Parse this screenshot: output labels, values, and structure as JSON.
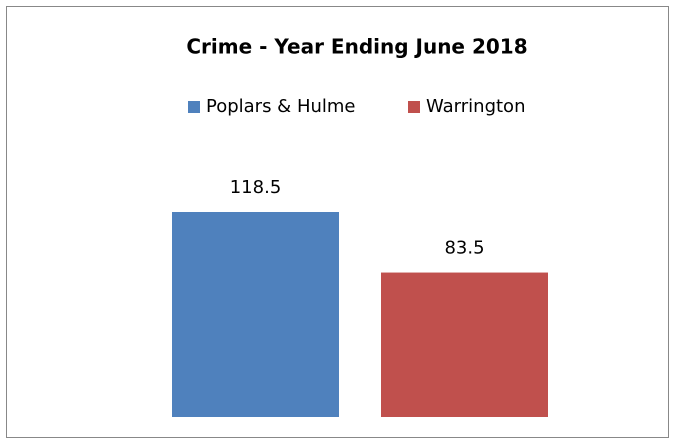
{
  "chart_data": {
    "type": "bar",
    "title": "Crime - Year Ending June 2018",
    "categories": [
      null
    ],
    "series": [
      {
        "name": "Poplars & Hulme",
        "color": "#4f81bd",
        "values": [
          118.5
        ]
      },
      {
        "name": "Warrington",
        "color": "#c0504d",
        "values": [
          83.5
        ]
      }
    ],
    "legend": "top"
  }
}
